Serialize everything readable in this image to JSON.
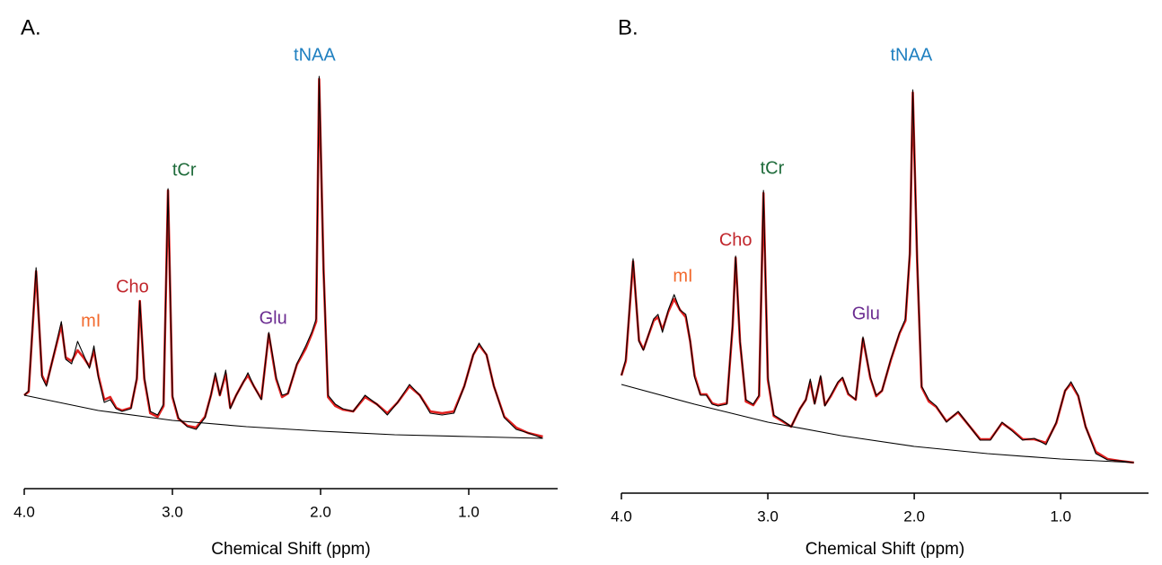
{
  "chart_data": [
    {
      "type": "line",
      "panel_label": "A.",
      "x_label": "Chemical Shift (ppm)",
      "xlim": [
        4.0,
        0.4
      ],
      "ylim": [
        0,
        460
      ],
      "xticks": [
        {
          "value": 4,
          "label": "4.0"
        },
        {
          "value": 3,
          "label": "3.0"
        },
        {
          "value": 2,
          "label": "2.0"
        },
        {
          "value": 1,
          "label": "1.0"
        }
      ],
      "x": [
        4.0,
        3.97,
        3.92,
        3.88,
        3.85,
        3.78,
        3.75,
        3.72,
        3.68,
        3.64,
        3.6,
        3.56,
        3.53,
        3.5,
        3.46,
        3.42,
        3.38,
        3.34,
        3.28,
        3.24,
        3.22,
        3.19,
        3.15,
        3.1,
        3.06,
        3.03,
        3.0,
        2.96,
        2.9,
        2.84,
        2.78,
        2.74,
        2.71,
        2.68,
        2.64,
        2.61,
        2.57,
        2.52,
        2.49,
        2.45,
        2.4,
        2.35,
        2.3,
        2.26,
        2.22,
        2.16,
        2.1,
        2.06,
        2.03,
        2.01,
        1.98,
        1.95,
        1.9,
        1.85,
        1.78,
        1.7,
        1.62,
        1.55,
        1.48,
        1.4,
        1.33,
        1.26,
        1.18,
        1.1,
        1.03,
        0.97,
        0.93,
        0.88,
        0.83,
        0.76,
        0.68,
        0.6,
        0.5
      ],
      "series": [
        {
          "color": "#e0201f",
          "values": [
            100,
            104,
            238,
            122,
            112,
            158,
            178,
            142,
            138,
            150,
            142,
            132,
            150,
            122,
            95,
            98,
            86,
            83,
            86,
            118,
            205,
            118,
            80,
            76,
            88,
            328,
            98,
            74,
            66,
            64,
            76,
            100,
            122,
            100,
            124,
            86,
            100,
            115,
            122,
            110,
            96,
            168,
            118,
            98,
            102,
            134,
            152,
            168,
            182,
            452,
            240,
            98,
            88,
            84,
            82,
            98,
            90,
            80,
            92,
            110,
            100,
            82,
            80,
            82,
            110,
            145,
            156,
            145,
            110,
            76,
            64,
            58,
            54
          ]
        },
        {
          "color": "#000000",
          "values": [
            100,
            105,
            242,
            120,
            110,
            160,
            182,
            140,
            135,
            160,
            145,
            130,
            155,
            120,
            92,
            95,
            85,
            82,
            85,
            120,
            205,
            120,
            82,
            78,
            90,
            330,
            100,
            75,
            65,
            62,
            75,
            100,
            125,
            100,
            128,
            85,
            100,
            115,
            125,
            110,
            95,
            170,
            120,
            100,
            102,
            135,
            155,
            170,
            185,
            455,
            240,
            100,
            90,
            85,
            82,
            100,
            90,
            78,
            92,
            112,
            100,
            80,
            78,
            80,
            110,
            145,
            158,
            145,
            110,
            75,
            62,
            58,
            52
          ]
        },
        {
          "color": "#000000",
          "x": [
            4.0,
            3.5,
            3.0,
            2.5,
            2.0,
            1.5,
            1.0,
            0.5
          ],
          "values": [
            100,
            83,
            72,
            65,
            60,
            56,
            54,
            52
          ]
        }
      ],
      "annotations": [
        {
          "text": "tNAA",
          "x": 2.04,
          "y": 478,
          "color": "#1e7fc0"
        },
        {
          "text": "tCr",
          "x": 2.92,
          "y": 350,
          "color": "#1e6b3a"
        },
        {
          "text": "Cho",
          "x": 3.27,
          "y": 220,
          "color": "#c1272d"
        },
        {
          "text": "mI",
          "x": 3.55,
          "y": 182,
          "color": "#f26a2e"
        },
        {
          "text": "Glu",
          "x": 2.32,
          "y": 185,
          "color": "#6b2c91"
        }
      ]
    },
    {
      "type": "line",
      "panel_label": "B.",
      "x_label": "Chemical Shift (ppm)",
      "xlim": [
        4.0,
        0.4
      ],
      "ylim": [
        0,
        460
      ],
      "xticks": [
        {
          "value": 4,
          "label": "4.0"
        },
        {
          "value": 3,
          "label": "3.0"
        },
        {
          "value": 2,
          "label": "2.0"
        },
        {
          "value": 1,
          "label": "1.0"
        }
      ],
      "x": [
        4.0,
        3.97,
        3.92,
        3.88,
        3.85,
        3.78,
        3.75,
        3.72,
        3.68,
        3.64,
        3.6,
        3.56,
        3.53,
        3.5,
        3.46,
        3.42,
        3.38,
        3.34,
        3.28,
        3.24,
        3.22,
        3.19,
        3.15,
        3.1,
        3.06,
        3.03,
        3.0,
        2.96,
        2.9,
        2.84,
        2.78,
        2.74,
        2.71,
        2.68,
        2.64,
        2.61,
        2.57,
        2.52,
        2.49,
        2.45,
        2.4,
        2.35,
        2.3,
        2.26,
        2.22,
        2.16,
        2.1,
        2.06,
        2.03,
        2.01,
        1.98,
        1.95,
        1.9,
        1.85,
        1.78,
        1.7,
        1.62,
        1.55,
        1.48,
        1.4,
        1.33,
        1.26,
        1.18,
        1.1,
        1.03,
        0.97,
        0.93,
        0.88,
        0.83,
        0.76,
        0.68,
        0.6,
        0.5
      ],
      "series": [
        {
          "color": "#e0201f",
          "values": [
            127,
            143,
            254,
            166,
            156,
            188,
            192,
            178,
            198,
            212,
            200,
            192,
            165,
            127,
            106,
            106,
            96,
            94,
            96,
            182,
            258,
            164,
            98,
            94,
            104,
            330,
            122,
            82,
            76,
            70,
            90,
            100,
            120,
            96,
            125,
            94,
            104,
            119,
            124,
            106,
            100,
            168,
            124,
            104,
            110,
            144,
            174,
            188,
            262,
            442,
            252,
            114,
            98,
            92,
            76,
            86,
            70,
            56,
            56,
            74,
            66,
            56,
            56,
            52,
            74,
            110,
            118,
            104,
            70,
            42,
            34,
            32,
            30
          ]
        },
        {
          "color": "#000000",
          "values": [
            127,
            145,
            257,
            165,
            155,
            190,
            195,
            175,
            200,
            217,
            200,
            195,
            165,
            125,
            105,
            105,
            95,
            93,
            95,
            185,
            260,
            165,
            100,
            95,
            105,
            333,
            125,
            83,
            77,
            70,
            90,
            100,
            123,
            95,
            127,
            93,
            105,
            120,
            125,
            107,
            100,
            170,
            125,
            105,
            110,
            145,
            175,
            190,
            265,
            445,
            255,
            115,
            100,
            93,
            75,
            87,
            70,
            55,
            55,
            75,
            65,
            55,
            57,
            50,
            75,
            110,
            120,
            105,
            70,
            40,
            33,
            32,
            30
          ]
        },
        {
          "color": "#000000",
          "x": [
            4.0,
            3.5,
            3.0,
            2.5,
            2.0,
            1.5,
            1.0,
            0.5
          ],
          "values": [
            117,
            95,
            75,
            60,
            48,
            40,
            34,
            30
          ]
        }
      ],
      "annotations": [
        {
          "text": "tNAA",
          "x": 2.02,
          "y": 483,
          "color": "#1e7fc0"
        },
        {
          "text": "tCr",
          "x": 2.97,
          "y": 357,
          "color": "#1e6b3a"
        },
        {
          "text": "Cho",
          "x": 3.22,
          "y": 277,
          "color": "#c1272d"
        },
        {
          "text": "mI",
          "x": 3.58,
          "y": 237,
          "color": "#f26a2e"
        },
        {
          "text": "Glu",
          "x": 2.33,
          "y": 195,
          "color": "#6b2c91"
        }
      ]
    }
  ]
}
